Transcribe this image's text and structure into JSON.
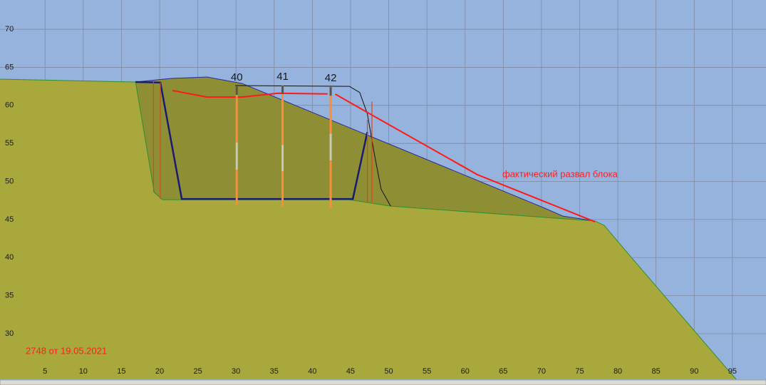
{
  "chart_data": {
    "type": "line",
    "xlim": [
      -0.9,
      99.4
    ],
    "ylim": [
      24.0,
      73.85
    ],
    "xticks": [
      5,
      10,
      15,
      20,
      25,
      30,
      35,
      40,
      45,
      50,
      55,
      60,
      65,
      70,
      75,
      80,
      85,
      90,
      95
    ],
    "yticks": [
      30,
      35,
      40,
      45,
      50,
      55,
      60,
      65,
      70
    ],
    "grid": true,
    "background": "#95b3dc",
    "annotations": [
      "фактический развал блока",
      "2748 от 19.05.2021"
    ],
    "annotation_color": "#ff2020",
    "series": [
      {
        "color": "#2a2aa0",
        "fill": "#8e8e34",
        "width": 1,
        "x": [
          16.85,
          21.5,
          26.2,
          30.8,
          70.0,
          72.8,
          77.0
        ],
        "values": [
          63.07,
          63.54,
          63.73,
          62.88,
          46.67,
          45.45,
          44.8
        ]
      },
      {
        "color": "#2f8f2f",
        "fill": "#a8a83c",
        "width": 1,
        "x": [
          -0.9,
          16.85,
          19.3,
          20.4,
          44.85,
          50.25,
          77.0,
          78.2,
          81.7,
          94.7,
          95.5
        ],
        "values": [
          63.45,
          63.07,
          48.55,
          47.6,
          47.6,
          46.76,
          44.8,
          44.24,
          40.1,
          24.9,
          24.0
        ]
      },
      {
        "color": "#101010",
        "width": 1,
        "x": [
          29.9,
          44.85,
          46.2,
          47.2,
          48.1,
          49.0,
          50.25
        ],
        "values": [
          62.6,
          62.5,
          61.7,
          58.9,
          53.7,
          49.0,
          46.76
        ]
      },
      {
        "color": "#1a1a70",
        "width": 2.5,
        "x": [
          16.85,
          20.1,
          22.9,
          45.3,
          47.2
        ],
        "values": [
          63.07,
          63.0,
          47.7,
          47.7,
          56.5
        ]
      },
      {
        "color": "#ff1a1a",
        "width": 2,
        "x": [
          21.7,
          26.2,
          30.8,
          35.5,
          42.0
        ],
        "values": [
          61.95,
          61.1,
          61.1,
          61.6,
          61.5
        ]
      },
      {
        "color": "#ff1a1a",
        "width": 2,
        "x": [
          43.0,
          47.6,
          61.6,
          77.0
        ],
        "values": [
          61.48,
          58.85,
          50.9,
          44.7
        ]
      },
      {
        "color": "#e8401a",
        "width": 1.2,
        "x": [
          19.2,
          19.2
        ],
        "values": [
          63.1,
          48.6
        ]
      },
      {
        "color": "#e8401a",
        "width": 1.2,
        "x": [
          20.1,
          20.1
        ],
        "values": [
          63.0,
          47.7
        ]
      },
      {
        "color": "#e8401a",
        "width": 1.2,
        "x": [
          47.2,
          47.2
        ],
        "values": [
          58.1,
          47.2
        ]
      },
      {
        "color": "#e8401a",
        "width": 1.2,
        "x": [
          47.8,
          47.8
        ],
        "values": [
          60.5,
          47.3
        ]
      }
    ],
    "holes": [
      {
        "label": "40",
        "x": 30.1,
        "top": 62.5,
        "bottom": 46.95,
        "gap": [
          51.55,
          55.1
        ]
      },
      {
        "label": "41",
        "x": 36.1,
        "top": 62.6,
        "bottom": 46.67,
        "gap": [
          51.35,
          54.8
        ]
      },
      {
        "label": "42",
        "x": 42.4,
        "top": 62.4,
        "bottom": 46.5,
        "gap": [
          52.75,
          56.3
        ]
      }
    ],
    "hole_color": "#ff8c3a",
    "gap_color": "#c8c8b8"
  }
}
